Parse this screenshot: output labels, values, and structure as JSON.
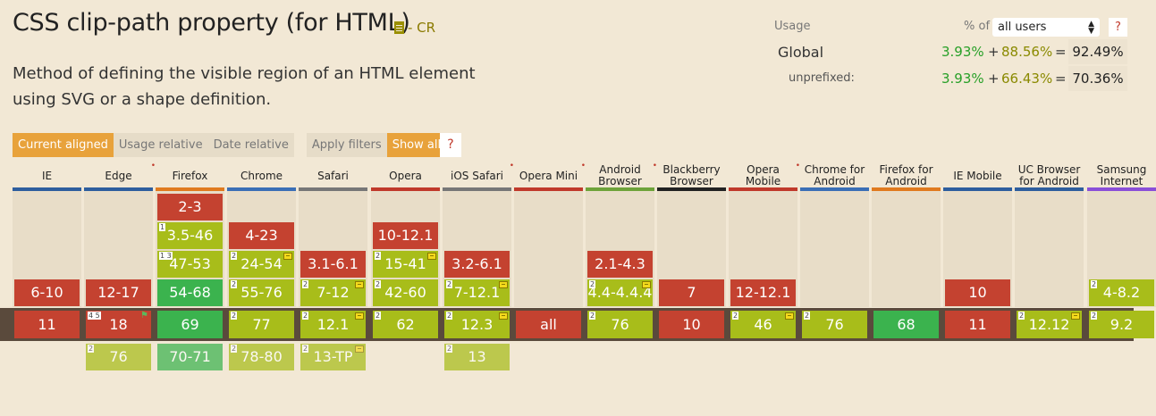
{
  "title": "CSS clip-path property (for HTML)",
  "status": "- CR",
  "description": "Method of defining the visible region of an HTML element using SVG or a shape definition.",
  "usage": {
    "label": "Usage",
    "of_label": "% of",
    "select_value": "all users",
    "help": "?",
    "global_label": "Global",
    "global_full": "3.93%",
    "global_partial": "88.56%",
    "global_total": "92.49%",
    "unprefixed_label": "unprefixed:",
    "unprefixed_full": "3.93%",
    "unprefixed_partial": "66.43%",
    "unprefixed_total": "70.36%",
    "plus": "+",
    "equals": "="
  },
  "filters": {
    "current_aligned": "Current aligned",
    "usage_relative": "Usage relative",
    "date_relative": "Date relative",
    "apply_filters": "Apply filters",
    "show_all": "Show all",
    "help": "?"
  },
  "colors": {
    "unsupported": "#c44230",
    "partial": "#a8bd1a",
    "supported": "#3bb34e",
    "accent": "#e8a23b"
  },
  "browsers": [
    {
      "name": "IE",
      "bar": "#2e5e9e",
      "dot": false,
      "cells": [
        {
          "row": 3,
          "v": "6-10",
          "s": "red"
        },
        {
          "row": 4,
          "v": "11",
          "s": "red"
        }
      ]
    },
    {
      "name": "Edge",
      "bar": "#2e5e9e",
      "dot": true,
      "cells": [
        {
          "row": 3,
          "v": "12-17",
          "s": "red"
        },
        {
          "row": 4,
          "v": "18",
          "s": "red",
          "note": "4 5",
          "gflag": true
        },
        {
          "row": 5,
          "v": "76",
          "s": "lime",
          "note": "2"
        }
      ]
    },
    {
      "name": "Firefox",
      "bar": "#e07a1f",
      "dot": false,
      "cells": [
        {
          "row": 0,
          "v": "2-3",
          "s": "red"
        },
        {
          "row": 1,
          "v": "3.5-46",
          "s": "lime",
          "note": "1"
        },
        {
          "row": 2,
          "v": "47-53",
          "s": "lime",
          "note": "1 3"
        },
        {
          "row": 3,
          "v": "54-68",
          "s": "green"
        },
        {
          "row": 4,
          "v": "69",
          "s": "green"
        },
        {
          "row": 5,
          "v": "70-71",
          "s": "green"
        }
      ]
    },
    {
      "name": "Chrome",
      "bar": "#3b6fb6",
      "dot": false,
      "cells": [
        {
          "row": 1,
          "v": "4-23",
          "s": "red"
        },
        {
          "row": 2,
          "v": "24-54",
          "s": "lime",
          "note": "2",
          "flag": true
        },
        {
          "row": 3,
          "v": "55-76",
          "s": "lime",
          "note": "2"
        },
        {
          "row": 4,
          "v": "77",
          "s": "lime",
          "note": "2"
        },
        {
          "row": 5,
          "v": "78-80",
          "s": "lime",
          "note": "2"
        }
      ]
    },
    {
      "name": "Safari",
      "bar": "#777777",
      "dot": false,
      "cells": [
        {
          "row": 2,
          "v": "3.1-6.1",
          "s": "red"
        },
        {
          "row": 3,
          "v": "7-12",
          "s": "lime",
          "note": "2",
          "flag": true
        },
        {
          "row": 4,
          "v": "12.1",
          "s": "lime",
          "note": "2",
          "flag": true
        },
        {
          "row": 5,
          "v": "13-TP",
          "s": "lime",
          "note": "2",
          "flag": true
        }
      ]
    },
    {
      "name": "Opera",
      "bar": "#c0392b",
      "dot": false,
      "cells": [
        {
          "row": 1,
          "v": "10-12.1",
          "s": "red"
        },
        {
          "row": 2,
          "v": "15-41",
          "s": "lime",
          "note": "2",
          "flag": true
        },
        {
          "row": 3,
          "v": "42-60",
          "s": "lime",
          "note": "2"
        },
        {
          "row": 4,
          "v": "62",
          "s": "lime",
          "note": "2"
        }
      ]
    },
    {
      "name": "iOS Safari",
      "bar": "#777777",
      "dot": true,
      "cells": [
        {
          "row": 2,
          "v": "3.2-6.1",
          "s": "red"
        },
        {
          "row": 3,
          "v": "7-12.1",
          "s": "lime",
          "note": "2",
          "flag": true
        },
        {
          "row": 4,
          "v": "12.3",
          "s": "lime",
          "note": "2",
          "flag": true
        },
        {
          "row": 5,
          "v": "13",
          "s": "lime",
          "note": "2"
        }
      ]
    },
    {
      "name": "Opera Mini",
      "bar": "#c0392b",
      "dot": true,
      "cells": [
        {
          "row": 4,
          "v": "all",
          "s": "red"
        }
      ]
    },
    {
      "name": "Android Browser",
      "bar": "#6ea33a",
      "dot": true,
      "cells": [
        {
          "row": 2,
          "v": "2.1-4.3",
          "s": "red"
        },
        {
          "row": 3,
          "v": "4.4-4.4.4",
          "s": "lime",
          "note": "2",
          "flag": true
        },
        {
          "row": 4,
          "v": "76",
          "s": "lime",
          "note": "2"
        }
      ]
    },
    {
      "name": "Blackberry Browser",
      "bar": "#222222",
      "dot": false,
      "cells": [
        {
          "row": 3,
          "v": "7",
          "s": "red"
        },
        {
          "row": 4,
          "v": "10",
          "s": "red"
        }
      ]
    },
    {
      "name": "Opera Mobile",
      "bar": "#c0392b",
      "dot": true,
      "cells": [
        {
          "row": 3,
          "v": "12-12.1",
          "s": "red"
        },
        {
          "row": 4,
          "v": "46",
          "s": "lime",
          "note": "2",
          "flag": true
        }
      ]
    },
    {
      "name": "Chrome for Android",
      "bar": "#3b6fb6",
      "dot": false,
      "cells": [
        {
          "row": 4,
          "v": "76",
          "s": "lime",
          "note": "2"
        }
      ]
    },
    {
      "name": "Firefox for Android",
      "bar": "#e07a1f",
      "dot": false,
      "cells": [
        {
          "row": 4,
          "v": "68",
          "s": "green"
        }
      ]
    },
    {
      "name": "IE Mobile",
      "bar": "#2e5e9e",
      "dot": false,
      "cells": [
        {
          "row": 3,
          "v": "10",
          "s": "red"
        },
        {
          "row": 4,
          "v": "11",
          "s": "red"
        }
      ]
    },
    {
      "name": "UC Browser for Android",
      "bar": "#2e5e9e",
      "dot": false,
      "cells": [
        {
          "row": 4,
          "v": "12.12",
          "s": "lime",
          "note": "2",
          "flag": true
        }
      ]
    },
    {
      "name": "Samsung Internet",
      "bar": "#8a4fd8",
      "dot": false,
      "cells": [
        {
          "row": 3,
          "v": "4-8.2",
          "s": "lime",
          "note": "2"
        },
        {
          "row": 4,
          "v": "9.2",
          "s": "lime",
          "note": "2"
        }
      ]
    }
  ]
}
